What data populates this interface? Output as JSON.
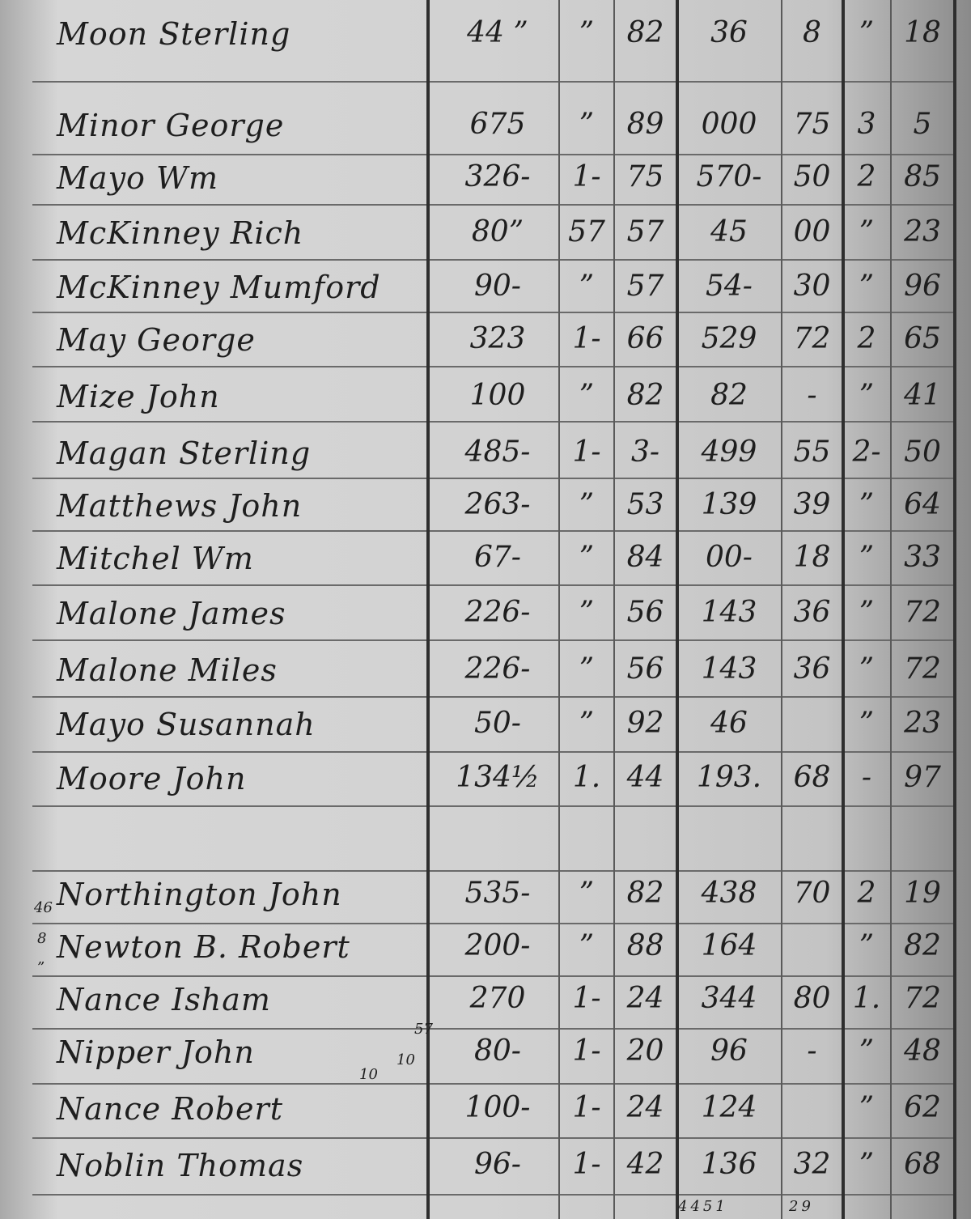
{
  "ledger": {
    "rows": [
      {
        "name": "Moon Sterling",
        "values": [
          "44 ”",
          "”",
          "82",
          "36",
          "8",
          "”",
          "18"
        ]
      },
      {
        "name": "Minor George",
        "values": [
          "675",
          "”",
          "89",
          "000",
          "75",
          "3",
          "5"
        ]
      },
      {
        "name": "Mayo Wm",
        "values": [
          "326-",
          "1-",
          "75",
          "570-",
          "50",
          "2",
          "85"
        ]
      },
      {
        "name": "McKinney Rich",
        "values": [
          "80”",
          "57",
          "57",
          "45",
          "00",
          "”",
          "23"
        ]
      },
      {
        "name": "McKinney Mumford",
        "values": [
          "90-",
          "”",
          "57",
          "54-",
          "30",
          "”",
          "96"
        ]
      },
      {
        "name": "May George",
        "values": [
          "323",
          "1-",
          "66",
          "529",
          "72",
          "2",
          "65"
        ]
      },
      {
        "name": "Mize John",
        "values": [
          "100",
          "”",
          "82",
          "82",
          "-",
          "”",
          "41"
        ]
      },
      {
        "name": "Magan Sterling",
        "values": [
          "485-",
          "1-",
          "3-",
          "499",
          "55",
          "2-",
          "50"
        ]
      },
      {
        "name": "Matthews John",
        "values": [
          "263-",
          "”",
          "53",
          "139",
          "39",
          "”",
          "64"
        ]
      },
      {
        "name": "Mitchel Wm",
        "values": [
          "67-",
          "”",
          "84",
          "00-",
          "18",
          "”",
          "33"
        ]
      },
      {
        "name": "Malone James",
        "values": [
          "226-",
          "”",
          "56",
          "143",
          "36",
          "”",
          "72"
        ]
      },
      {
        "name": "Malone Miles",
        "values": [
          "226-",
          "”",
          "56",
          "143",
          "36",
          "”",
          "72"
        ]
      },
      {
        "name": "Mayo Susannah",
        "values": [
          "50-",
          "”",
          "92",
          "46",
          "",
          "”",
          "23"
        ]
      },
      {
        "name": "Moore John",
        "values": [
          "134½",
          "1.",
          "44",
          "193.",
          "68",
          "-",
          "97"
        ]
      },
      {
        "name": "Northington John",
        "values": [
          "535-",
          "”",
          "82",
          "438",
          "70",
          "2",
          "19"
        ]
      },
      {
        "name": "Newton B. Robert",
        "values": [
          "200-",
          "”",
          "88",
          "164",
          "",
          "”",
          "82"
        ]
      },
      {
        "name": "Nance Isham",
        "values": [
          "270",
          "1-",
          "24",
          "344",
          "80",
          "1.",
          "72"
        ]
      },
      {
        "name": "Nipper John",
        "values": [
          "80-",
          "1-",
          "20",
          "96",
          "-",
          "”",
          "48"
        ]
      },
      {
        "name": "Nance Robert",
        "values": [
          "100-",
          "1-",
          "24",
          "124",
          "",
          "”",
          "62"
        ]
      },
      {
        "name": "Noblin Thomas",
        "values": [
          "96-",
          "1-",
          "42",
          "136",
          "32",
          "”",
          "68"
        ]
      }
    ],
    "margin_notes": [
      "46",
      "8",
      "”",
      "57",
      "10",
      "10"
    ],
    "totals": [
      "4451",
      "29"
    ]
  }
}
